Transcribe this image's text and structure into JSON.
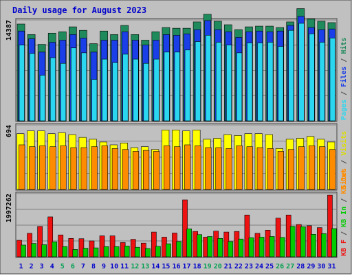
{
  "chart_data": [
    {
      "type": "bar",
      "title": "Daily usage for August 2023",
      "max_label": "14387",
      "categories": [
        "1",
        "2",
        "3",
        "4",
        "5",
        "6",
        "7",
        "8",
        "9",
        "10",
        "11",
        "12",
        "13",
        "14",
        "15",
        "16",
        "17",
        "18",
        "19",
        "20",
        "21",
        "22",
        "23",
        "24",
        "25",
        "26",
        "27",
        "28",
        "29",
        "30",
        "31"
      ],
      "weekend_days": [
        "5",
        "6",
        "12",
        "13",
        "19",
        "20",
        "26",
        "27"
      ],
      "series": [
        {
          "name": "Hits",
          "color": "#1f8a5b",
          "values": [
            13800,
            12300,
            10900,
            12500,
            12700,
            13400,
            12900,
            11000,
            12800,
            12300,
            13600,
            12300,
            11500,
            12700,
            13300,
            13200,
            13200,
            14100,
            15200,
            14200,
            13700,
            13000,
            13400,
            13500,
            13500,
            13300,
            14100,
            16000,
            14500,
            14200,
            14000
          ]
        },
        {
          "name": "Files",
          "color": "#1a3ee8",
          "values": [
            12800,
            11700,
            9800,
            11200,
            11500,
            12300,
            11800,
            9800,
            11500,
            11500,
            12700,
            11500,
            10800,
            11500,
            12300,
            12200,
            12400,
            13000,
            14300,
            13000,
            12700,
            11900,
            12700,
            12800,
            12700,
            12800,
            13600,
            14900,
            13300,
            13000,
            13100
          ]
        },
        {
          "name": "Pages",
          "color": "#2ad6f0",
          "values": [
            10800,
            9600,
            6500,
            9000,
            8200,
            10400,
            9700,
            5900,
            8800,
            8300,
            9500,
            8800,
            8200,
            8800,
            9800,
            9800,
            10100,
            11300,
            12200,
            11200,
            10800,
            9700,
            11100,
            11100,
            11200,
            10600,
            12900,
            13900,
            12400,
            11200,
            11800
          ]
        }
      ]
    },
    {
      "type": "bar",
      "max_label": "694",
      "series": [
        {
          "name": "Visits",
          "color": "#ffff00",
          "values": [
            600,
            630,
            630,
            600,
            610,
            590,
            560,
            540,
            510,
            480,
            500,
            450,
            460,
            430,
            640,
            640,
            630,
            640,
            540,
            550,
            590,
            580,
            600,
            600,
            590,
            440,
            540,
            550,
            570,
            540,
            510
          ]
        },
        {
          "name": "Sites",
          "color": "#ff8c00",
          "values": [
            480,
            460,
            470,
            460,
            470,
            450,
            450,
            460,
            470,
            440,
            430,
            410,
            420,
            410,
            470,
            460,
            480,
            470,
            450,
            450,
            440,
            470,
            460,
            450,
            440,
            410,
            430,
            460,
            470,
            460,
            430
          ]
        }
      ]
    },
    {
      "type": "bar",
      "max_label": "1997262",
      "series": [
        {
          "name": "KB F",
          "color": "#ee1111",
          "values": [
            520000,
            740000,
            960000,
            1260000,
            690000,
            580000,
            570000,
            500000,
            660000,
            660000,
            450000,
            550000,
            430000,
            780000,
            620000,
            750000,
            1800000,
            800000,
            620000,
            810000,
            780000,
            800000,
            1320000,
            740000,
            840000,
            1220000,
            1320000,
            1020000,
            980000,
            920000,
            1950000
          ]
        },
        {
          "name": "KB In",
          "color": "#00cc00",
          "values": [
            370000,
            420000,
            380000,
            470000,
            320000,
            230000,
            270000,
            280000,
            320000,
            320000,
            340000,
            300000,
            260000,
            330000,
            410000,
            480000,
            880000,
            700000,
            640000,
            580000,
            480000,
            560000,
            600000,
            620000,
            640000,
            610000,
            960000,
            950000,
            710000,
            730000,
            890000
          ]
        },
        {
          "name": "KB Out",
          "color": "#ff8c00",
          "values": [
            0,
            0,
            0,
            0,
            0,
            0,
            0,
            0,
            0,
            0,
            0,
            0,
            0,
            0,
            0,
            0,
            0,
            0,
            0,
            0,
            0,
            0,
            0,
            0,
            0,
            0,
            0,
            0,
            0,
            0,
            0
          ]
        }
      ]
    }
  ],
  "legend_top": [
    {
      "text": "Pages",
      "color": "#2ad6f0"
    },
    {
      "text": " / ",
      "color": "#444444"
    },
    {
      "text": "Files",
      "color": "#1a3ee8"
    },
    {
      "text": " / ",
      "color": "#444444"
    },
    {
      "text": "Hits",
      "color": "#1f8a5b"
    }
  ],
  "legend_mid": [
    {
      "text": "Sites",
      "color": "#ff8c00"
    },
    {
      "text": " / ",
      "color": "#444444"
    },
    {
      "text": "Visits",
      "color": "#dddd00"
    }
  ],
  "legend_bot": [
    {
      "text": "KB F",
      "color": "#ee1111"
    },
    {
      "text": " / ",
      "color": "#444444"
    },
    {
      "text": "KB In",
      "color": "#00cc00"
    },
    {
      "text": " / ",
      "color": "#444444"
    },
    {
      "text": "KB Out",
      "color": "#ff8c00"
    }
  ],
  "colors": {
    "frame_bg": "#c0c0c0",
    "title": "#0000cc",
    "weekday_label": "#0000cc",
    "weekend_label": "#00a050"
  }
}
